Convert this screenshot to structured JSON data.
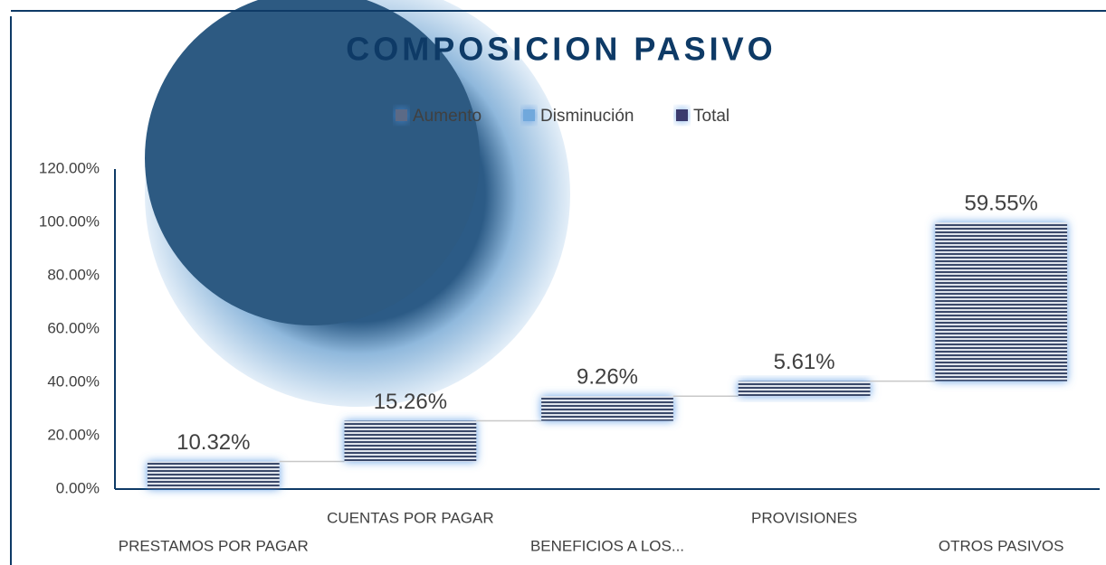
{
  "chart_data": {
    "type": "waterfall",
    "title": "COMPOSICION PASIVO",
    "categories": [
      "PRESTAMOS POR PAGAR",
      "CUENTAS POR PAGAR",
      "BENEFICIOS A LOS...",
      "PROVISIONES",
      "OTROS PASIVOS"
    ],
    "values": [
      10.32,
      15.26,
      9.26,
      5.61,
      59.55
    ],
    "value_labels": [
      "10.32%",
      "15.26%",
      "9.26%",
      "5.61%",
      "59.55%"
    ],
    "color": "#3a4a6b",
    "legend": [
      {
        "name": "Aumento",
        "color": "#5b6b86"
      },
      {
        "name": "Disminución",
        "color": "#6fa8dc"
      },
      {
        "name": "Total",
        "color": "#3b3a6e"
      }
    ],
    "ylim": [
      0,
      120
    ],
    "yticks": [
      {
        "value": 0,
        "label": "0.00%"
      },
      {
        "value": 20,
        "label": "20.00%"
      },
      {
        "value": 40,
        "label": "40.00%"
      },
      {
        "value": 60,
        "label": "60.00%"
      },
      {
        "value": 80,
        "label": "80.00%"
      },
      {
        "value": 100,
        "label": "100.00%"
      },
      {
        "value": 120,
        "label": "120.00%"
      }
    ],
    "grid": false
  }
}
